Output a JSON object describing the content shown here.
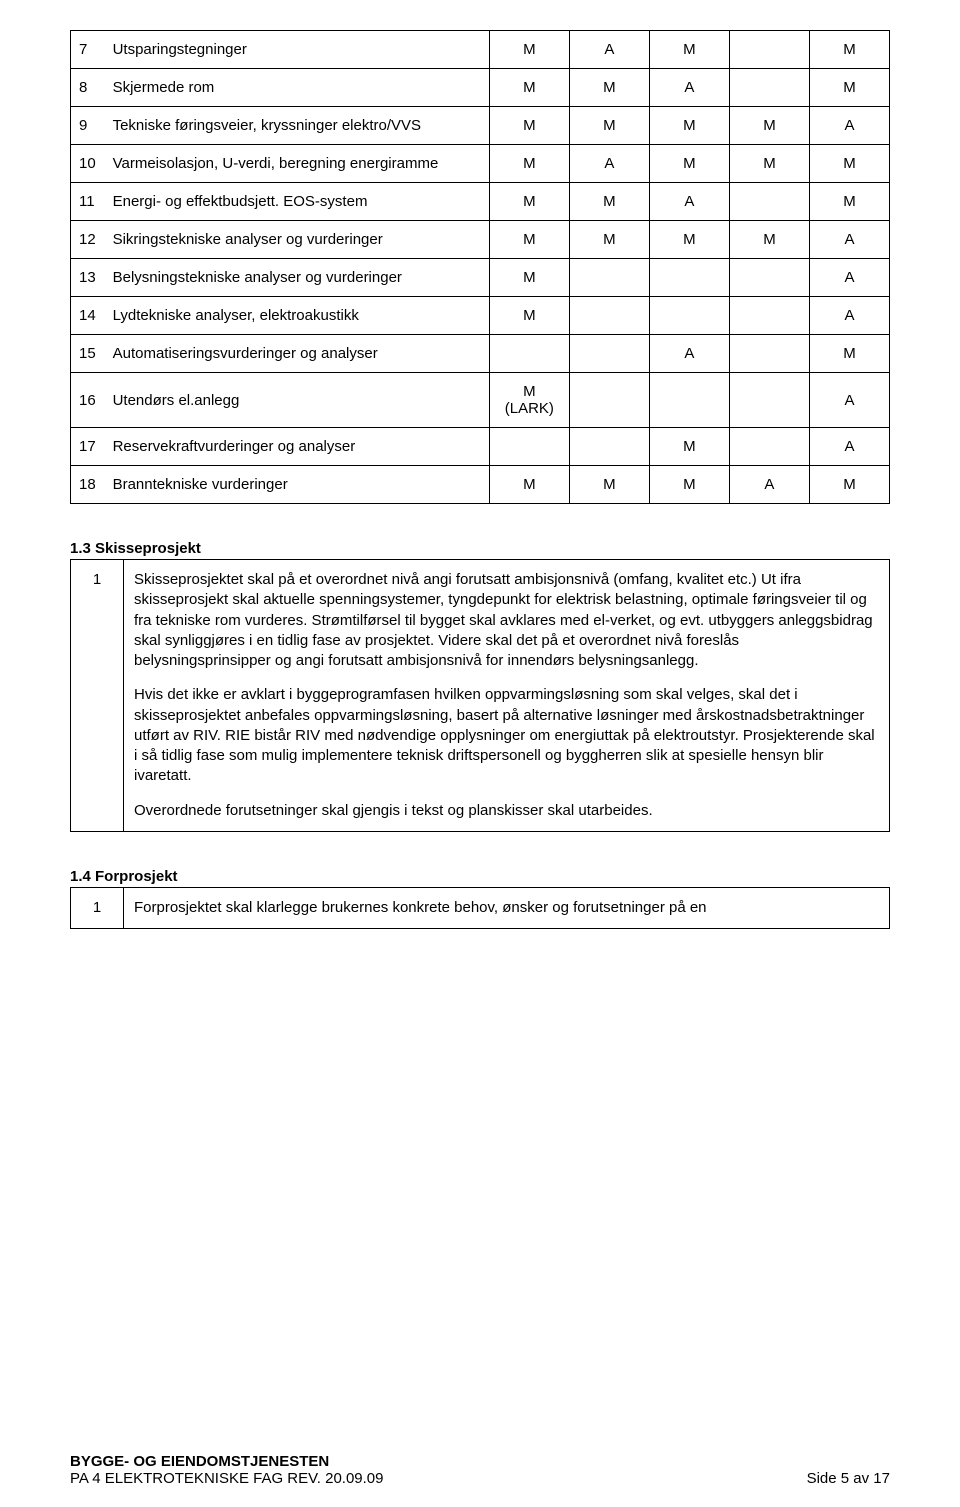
{
  "matrixRows": [
    {
      "n": "7",
      "desc": "Utsparingstegninger",
      "c": [
        "M",
        "A",
        "M",
        "",
        "M"
      ]
    },
    {
      "n": "8",
      "desc": "Skjermede rom",
      "c": [
        "M",
        "M",
        "A",
        "",
        "M"
      ]
    },
    {
      "n": "9",
      "desc": "Tekniske føringsveier, kryssninger elektro/VVS",
      "c": [
        "M",
        "M",
        "M",
        "M",
        "A"
      ]
    },
    {
      "n": "10",
      "desc": "Varmeisolasjon, U-verdi, beregning energiramme",
      "c": [
        "M",
        "A",
        "M",
        "M",
        "M"
      ]
    },
    {
      "n": "11",
      "desc": "Energi- og effektbudsjett. EOS-system",
      "c": [
        "M",
        "M",
        "A",
        "",
        "M"
      ]
    },
    {
      "n": "12",
      "desc": "Sikringstekniske analyser og vurderinger",
      "c": [
        "M",
        "M",
        "M",
        "M",
        "A"
      ]
    },
    {
      "n": "13",
      "desc": "Belysningstekniske analyser og vurderinger",
      "c": [
        "M",
        "",
        "",
        "",
        "A"
      ]
    },
    {
      "n": "14",
      "desc": "Lydtekniske analyser, elektroakustikk",
      "c": [
        "M",
        "",
        "",
        "",
        "A"
      ]
    },
    {
      "n": "15",
      "desc": "Automatiseringsvurderinger og analyser",
      "c": [
        "",
        "",
        "A",
        "",
        "M"
      ]
    },
    {
      "n": "16",
      "desc": "Utendørs el.anlegg",
      "c": [
        "M (LARK)",
        "",
        "",
        "",
        "A"
      ]
    },
    {
      "n": "17",
      "desc": "Reservekraftvurderinger og analyser",
      "c": [
        "",
        "",
        "M",
        "",
        "A"
      ]
    },
    {
      "n": "18",
      "desc": "Branntekniske vurderinger",
      "c": [
        "M",
        "M",
        "M",
        "A",
        "M"
      ]
    }
  ],
  "section13": {
    "title": "1.3 Skisseprosjekt",
    "rowNum": "1",
    "paras": [
      "Skisseprosjektet skal på et overordnet nivå angi forutsatt ambisjonsnivå (omfang, kvalitet etc.) Ut ifra skisseprosjekt skal aktuelle spenningsystemer, tyngdepunkt for elektrisk belastning, optimale føringsveier til og fra tekniske rom vurderes. Strømtilførsel til bygget skal avklares med el-verket, og evt. utbyggers anleggsbidrag skal synliggjøres i en tidlig fase av prosjektet. Videre skal det på et overordnet nivå foreslås belysningsprinsipper og angi forutsatt ambisjonsnivå for innendørs belysningsanlegg.",
      "Hvis det ikke er avklart i byggeprogramfasen hvilken oppvarmingsløsning som skal velges, skal det i skisseprosjektet anbefales oppvarmingsløsning, basert på alternative løsninger med årskostnadsbetraktninger utført av RIV. RIE bistår RIV med nødvendige opplysninger om energiuttak på elektroutstyr. Prosjekterende skal i så tidlig fase som mulig implementere teknisk driftspersonell og byggherren slik at spesielle hensyn blir ivaretatt.",
      "Overordnede forutsetninger skal gjengis i tekst og planskisser skal utarbeides."
    ]
  },
  "section14": {
    "title": "1.4 Forprosjekt",
    "rowNum": "1",
    "text": "Forprosjektet skal klarlegge brukernes konkrete behov, ønsker og forutsetninger på en"
  },
  "footer": {
    "line1": "BYGGE- OG EIENDOMSTJENESTEN",
    "left": "PA 4 ELEKTROTEKNISKE FAG  REV. 20.09.09",
    "right": "Side 5 av 17"
  }
}
